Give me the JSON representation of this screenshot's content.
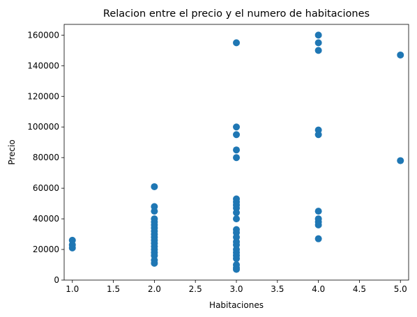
{
  "chart_data": {
    "type": "scatter",
    "title": "Relacion entre el precio y el numero de habitaciones",
    "xlabel": "Habitaciones",
    "ylabel": "Precio",
    "xlim": [
      0.9,
      5.1
    ],
    "ylim": [
      0,
      167000
    ],
    "xticks": [
      1.0,
      1.5,
      2.0,
      2.5,
      3.0,
      3.5,
      4.0,
      4.5,
      5.0
    ],
    "xtick_labels": [
      "1.0",
      "1.5",
      "2.0",
      "2.5",
      "3.0",
      "3.5",
      "4.0",
      "4.5",
      "5.0"
    ],
    "yticks": [
      0,
      20000,
      40000,
      60000,
      80000,
      100000,
      120000,
      140000,
      160000
    ],
    "ytick_labels": [
      "0",
      "20000",
      "40000",
      "60000",
      "80000",
      "100000",
      "120000",
      "140000",
      "160000"
    ],
    "grid": false,
    "marker_color": "#1f77b4",
    "points": [
      {
        "x": 1,
        "y": 26000
      },
      {
        "x": 1,
        "y": 23000
      },
      {
        "x": 1,
        "y": 21000
      },
      {
        "x": 2,
        "y": 61000
      },
      {
        "x": 2,
        "y": 48000
      },
      {
        "x": 2,
        "y": 45000
      },
      {
        "x": 2,
        "y": 40000
      },
      {
        "x": 2,
        "y": 38000
      },
      {
        "x": 2,
        "y": 36000
      },
      {
        "x": 2,
        "y": 34000
      },
      {
        "x": 2,
        "y": 32000
      },
      {
        "x": 2,
        "y": 30000
      },
      {
        "x": 2,
        "y": 28000
      },
      {
        "x": 2,
        "y": 26000
      },
      {
        "x": 2,
        "y": 24000
      },
      {
        "x": 2,
        "y": 22000
      },
      {
        "x": 2,
        "y": 20000
      },
      {
        "x": 2,
        "y": 18000
      },
      {
        "x": 2,
        "y": 16000
      },
      {
        "x": 2,
        "y": 13000
      },
      {
        "x": 2,
        "y": 11000
      },
      {
        "x": 3,
        "y": 155000
      },
      {
        "x": 3,
        "y": 100000
      },
      {
        "x": 3,
        "y": 95000
      },
      {
        "x": 3,
        "y": 85000
      },
      {
        "x": 3,
        "y": 80000
      },
      {
        "x": 3,
        "y": 53000
      },
      {
        "x": 3,
        "y": 51000
      },
      {
        "x": 3,
        "y": 49000
      },
      {
        "x": 3,
        "y": 47000
      },
      {
        "x": 3,
        "y": 44000
      },
      {
        "x": 3,
        "y": 40000
      },
      {
        "x": 3,
        "y": 33000
      },
      {
        "x": 3,
        "y": 31000
      },
      {
        "x": 3,
        "y": 28000
      },
      {
        "x": 3,
        "y": 25000
      },
      {
        "x": 3,
        "y": 23000
      },
      {
        "x": 3,
        "y": 20000
      },
      {
        "x": 3,
        "y": 18000
      },
      {
        "x": 3,
        "y": 16000
      },
      {
        "x": 3,
        "y": 14000
      },
      {
        "x": 3,
        "y": 10000
      },
      {
        "x": 3,
        "y": 8000
      },
      {
        "x": 3,
        "y": 7000
      },
      {
        "x": 4,
        "y": 160000
      },
      {
        "x": 4,
        "y": 155000
      },
      {
        "x": 4,
        "y": 150000
      },
      {
        "x": 4,
        "y": 98000
      },
      {
        "x": 4,
        "y": 95000
      },
      {
        "x": 4,
        "y": 45000
      },
      {
        "x": 4,
        "y": 40000
      },
      {
        "x": 4,
        "y": 38000
      },
      {
        "x": 4,
        "y": 36000
      },
      {
        "x": 4,
        "y": 27000
      },
      {
        "x": 5,
        "y": 147000
      },
      {
        "x": 5,
        "y": 78000
      }
    ]
  }
}
